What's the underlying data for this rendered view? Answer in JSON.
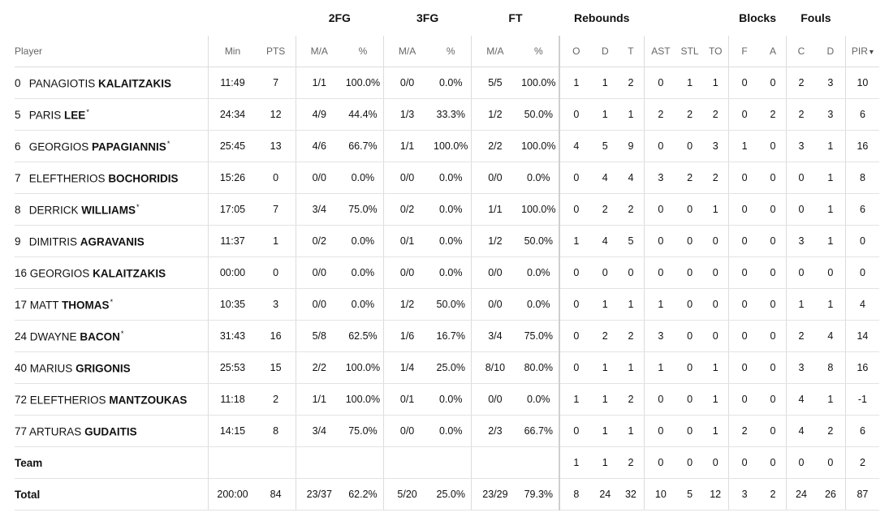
{
  "groups": {
    "fg2": "2FG",
    "fg3": "3FG",
    "ft": "FT",
    "reb": "Rebounds",
    "blk": "Blocks",
    "fouls": "Fouls"
  },
  "headers": {
    "player": "Player",
    "min": "Min",
    "pts": "PTS",
    "fg2_ma": "M/A",
    "fg2_pct": "%",
    "fg3_ma": "M/A",
    "fg3_pct": "%",
    "ft_ma": "M/A",
    "ft_pct": "%",
    "reb_o": "O",
    "reb_d": "D",
    "reb_t": "T",
    "ast": "AST",
    "stl": "STL",
    "to": "TO",
    "blk_f": "F",
    "blk_a": "A",
    "foul_c": "C",
    "foul_d": "D",
    "pir": "PIR",
    "pir_arrow": "▾"
  },
  "players": [
    {
      "num": "0",
      "first": "PANAGIOTIS",
      "last": "KALAITZAKIS",
      "star": "",
      "min": "11:49",
      "pts": "7",
      "fg2": "1/1",
      "fg2p": "100.0%",
      "fg3": "0/0",
      "fg3p": "0.0%",
      "ft": "5/5",
      "ftp": "100.0%",
      "o": "1",
      "d": "1",
      "t": "2",
      "ast": "0",
      "stl": "1",
      "to": "1",
      "bf": "0",
      "ba": "0",
      "fc": "2",
      "fd": "3",
      "pir": "10"
    },
    {
      "num": "5",
      "first": "PARIS",
      "last": "LEE",
      "star": "*",
      "min": "24:34",
      "pts": "12",
      "fg2": "4/9",
      "fg2p": "44.4%",
      "fg3": "1/3",
      "fg3p": "33.3%",
      "ft": "1/2",
      "ftp": "50.0%",
      "o": "0",
      "d": "1",
      "t": "1",
      "ast": "2",
      "stl": "2",
      "to": "2",
      "bf": "0",
      "ba": "2",
      "fc": "2",
      "fd": "3",
      "pir": "6"
    },
    {
      "num": "6",
      "first": "GEORGIOS",
      "last": "PAPAGIANNIS",
      "star": "*",
      "min": "25:45",
      "pts": "13",
      "fg2": "4/6",
      "fg2p": "66.7%",
      "fg3": "1/1",
      "fg3p": "100.0%",
      "ft": "2/2",
      "ftp": "100.0%",
      "o": "4",
      "d": "5",
      "t": "9",
      "ast": "0",
      "stl": "0",
      "to": "3",
      "bf": "1",
      "ba": "0",
      "fc": "3",
      "fd": "1",
      "pir": "16"
    },
    {
      "num": "7",
      "first": "ELEFTHERIOS",
      "last": "BOCHORIDIS",
      "star": "",
      "min": "15:26",
      "pts": "0",
      "fg2": "0/0",
      "fg2p": "0.0%",
      "fg3": "0/0",
      "fg3p": "0.0%",
      "ft": "0/0",
      "ftp": "0.0%",
      "o": "0",
      "d": "4",
      "t": "4",
      "ast": "3",
      "stl": "2",
      "to": "2",
      "bf": "0",
      "ba": "0",
      "fc": "0",
      "fd": "1",
      "pir": "8"
    },
    {
      "num": "8",
      "first": "DERRICK",
      "last": "WILLIAMS",
      "star": "*",
      "min": "17:05",
      "pts": "7",
      "fg2": "3/4",
      "fg2p": "75.0%",
      "fg3": "0/2",
      "fg3p": "0.0%",
      "ft": "1/1",
      "ftp": "100.0%",
      "o": "0",
      "d": "2",
      "t": "2",
      "ast": "0",
      "stl": "0",
      "to": "1",
      "bf": "0",
      "ba": "0",
      "fc": "0",
      "fd": "1",
      "pir": "6"
    },
    {
      "num": "9",
      "first": "DIMITRIS",
      "last": "AGRAVANIS",
      "star": "",
      "min": "11:37",
      "pts": "1",
      "fg2": "0/2",
      "fg2p": "0.0%",
      "fg3": "0/1",
      "fg3p": "0.0%",
      "ft": "1/2",
      "ftp": "50.0%",
      "o": "1",
      "d": "4",
      "t": "5",
      "ast": "0",
      "stl": "0",
      "to": "0",
      "bf": "0",
      "ba": "0",
      "fc": "3",
      "fd": "1",
      "pir": "0"
    },
    {
      "num": "16",
      "first": "GEORGIOS",
      "last": "KALAITZAKIS",
      "star": "",
      "min": "00:00",
      "pts": "0",
      "fg2": "0/0",
      "fg2p": "0.0%",
      "fg3": "0/0",
      "fg3p": "0.0%",
      "ft": "0/0",
      "ftp": "0.0%",
      "o": "0",
      "d": "0",
      "t": "0",
      "ast": "0",
      "stl": "0",
      "to": "0",
      "bf": "0",
      "ba": "0",
      "fc": "0",
      "fd": "0",
      "pir": "0"
    },
    {
      "num": "17",
      "first": "MATT",
      "last": "THOMAS",
      "star": "*",
      "min": "10:35",
      "pts": "3",
      "fg2": "0/0",
      "fg2p": "0.0%",
      "fg3": "1/2",
      "fg3p": "50.0%",
      "ft": "0/0",
      "ftp": "0.0%",
      "o": "0",
      "d": "1",
      "t": "1",
      "ast": "1",
      "stl": "0",
      "to": "0",
      "bf": "0",
      "ba": "0",
      "fc": "1",
      "fd": "1",
      "pir": "4"
    },
    {
      "num": "24",
      "first": "DWAYNE",
      "last": "BACON",
      "star": "*",
      "min": "31:43",
      "pts": "16",
      "fg2": "5/8",
      "fg2p": "62.5%",
      "fg3": "1/6",
      "fg3p": "16.7%",
      "ft": "3/4",
      "ftp": "75.0%",
      "o": "0",
      "d": "2",
      "t": "2",
      "ast": "3",
      "stl": "0",
      "to": "0",
      "bf": "0",
      "ba": "0",
      "fc": "2",
      "fd": "4",
      "pir": "14"
    },
    {
      "num": "40",
      "first": "MARIUS",
      "last": "GRIGONIS",
      "star": "",
      "min": "25:53",
      "pts": "15",
      "fg2": "2/2",
      "fg2p": "100.0%",
      "fg3": "1/4",
      "fg3p": "25.0%",
      "ft": "8/10",
      "ftp": "80.0%",
      "o": "0",
      "d": "1",
      "t": "1",
      "ast": "1",
      "stl": "0",
      "to": "1",
      "bf": "0",
      "ba": "0",
      "fc": "3",
      "fd": "8",
      "pir": "16"
    },
    {
      "num": "72",
      "first": "ELEFTHERIOS",
      "last": "MANTZOUKAS",
      "star": "",
      "min": "11:18",
      "pts": "2",
      "fg2": "1/1",
      "fg2p": "100.0%",
      "fg3": "0/1",
      "fg3p": "0.0%",
      "ft": "0/0",
      "ftp": "0.0%",
      "o": "1",
      "d": "1",
      "t": "2",
      "ast": "0",
      "stl": "0",
      "to": "1",
      "bf": "0",
      "ba": "0",
      "fc": "4",
      "fd": "1",
      "pir": "-1"
    },
    {
      "num": "77",
      "first": "ARTURAS",
      "last": "GUDAITIS",
      "star": "",
      "min": "14:15",
      "pts": "8",
      "fg2": "3/4",
      "fg2p": "75.0%",
      "fg3": "0/0",
      "fg3p": "0.0%",
      "ft": "2/3",
      "ftp": "66.7%",
      "o": "0",
      "d": "1",
      "t": "1",
      "ast": "0",
      "stl": "0",
      "to": "1",
      "bf": "2",
      "ba": "0",
      "fc": "4",
      "fd": "2",
      "pir": "6"
    }
  ],
  "team": {
    "label": "Team",
    "o": "1",
    "d": "1",
    "t": "2",
    "ast": "0",
    "stl": "0",
    "to": "0",
    "bf": "0",
    "ba": "0",
    "fc": "0",
    "fd": "0",
    "pir": "2"
  },
  "total": {
    "label": "Total",
    "min": "200:00",
    "pts": "84",
    "fg2": "23/37",
    "fg2p": "62.2%",
    "fg3": "5/20",
    "fg3p": "25.0%",
    "ft": "23/29",
    "ftp": "79.3%",
    "o": "8",
    "d": "24",
    "t": "32",
    "ast": "10",
    "stl": "5",
    "to": "12",
    "bf": "3",
    "ba": "2",
    "fc": "24",
    "fd": "26",
    "pir": "87"
  }
}
